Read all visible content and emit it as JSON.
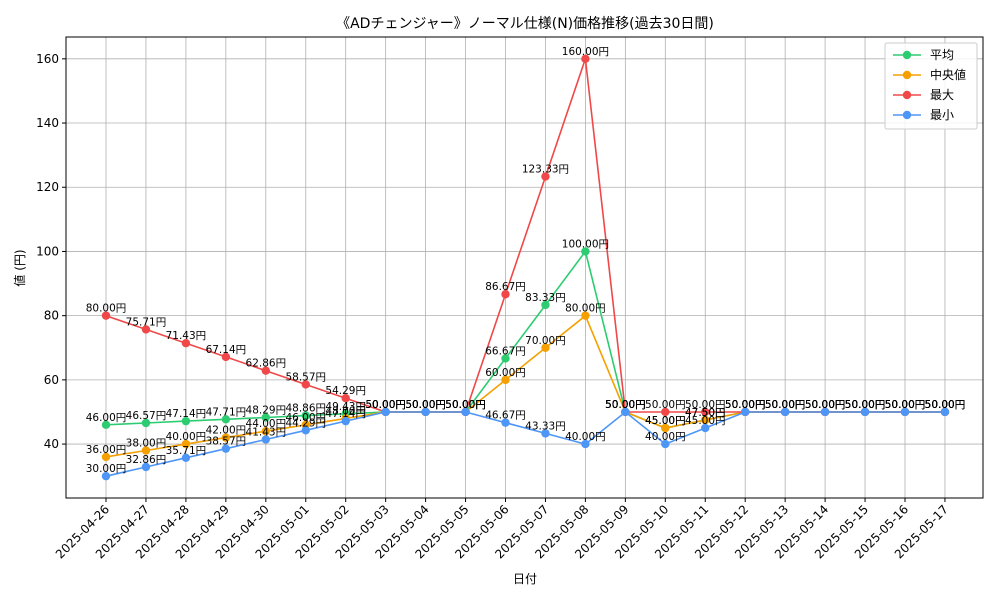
{
  "chart_data": {
    "type": "line",
    "title": "《ADチェンジャー》ノーマル仕様(N)価格推移(過去30日間)",
    "xlabel": "日付",
    "ylabel": "値 (円)",
    "ylim": [
      23.2,
      166.8
    ],
    "yticks": [
      40,
      60,
      80,
      100,
      120,
      140,
      160
    ],
    "grid": true,
    "legend_position": "top-right",
    "label_suffix": "円",
    "categories": [
      "2025-04-26",
      "2025-04-27",
      "2025-04-28",
      "2025-04-29",
      "2025-04-30",
      "2025-05-01",
      "2025-05-02",
      "2025-05-03",
      "2025-05-04",
      "2025-05-05",
      "2025-05-06",
      "2025-05-07",
      "2025-05-08",
      "2025-05-09",
      "2025-05-10",
      "2025-05-11",
      "2025-05-12",
      "2025-05-13",
      "2025-05-14",
      "2025-05-15",
      "2025-05-16",
      "2025-05-17"
    ],
    "series": [
      {
        "name": "平均",
        "color": "#2ecc71",
        "values": [
          46.0,
          46.57,
          47.14,
          47.71,
          48.29,
          48.86,
          49.43,
          50.0,
          50.0,
          50.0,
          66.67,
          83.33,
          100.0,
          50.0,
          45.0,
          47.5,
          50.0,
          50.0,
          50.0,
          50.0,
          50.0,
          50.0
        ]
      },
      {
        "name": "中央値",
        "color": "#f5a000",
        "values": [
          36.0,
          38.0,
          40.0,
          42.0,
          44.0,
          46.0,
          48.0,
          50.0,
          50.0,
          50.0,
          60.0,
          70.0,
          80.0,
          50.0,
          45.0,
          47.5,
          50.0,
          50.0,
          50.0,
          50.0,
          50.0,
          50.0
        ]
      },
      {
        "name": "最大",
        "color": "#f04848",
        "values": [
          80.0,
          75.71,
          71.43,
          67.14,
          62.86,
          58.57,
          54.29,
          50.0,
          50.0,
          50.0,
          86.67,
          123.33,
          160.0,
          50.0,
          50.0,
          50.0,
          50.0,
          50.0,
          50.0,
          50.0,
          50.0,
          50.0
        ]
      },
      {
        "name": "最小",
        "color": "#4d96f7",
        "values": [
          30.0,
          32.86,
          35.71,
          38.57,
          41.43,
          44.29,
          47.14,
          50.0,
          50.0,
          50.0,
          46.67,
          43.33,
          40.0,
          50.0,
          40.0,
          45.0,
          50.0,
          50.0,
          50.0,
          50.0,
          50.0,
          50.0
        ]
      }
    ]
  }
}
